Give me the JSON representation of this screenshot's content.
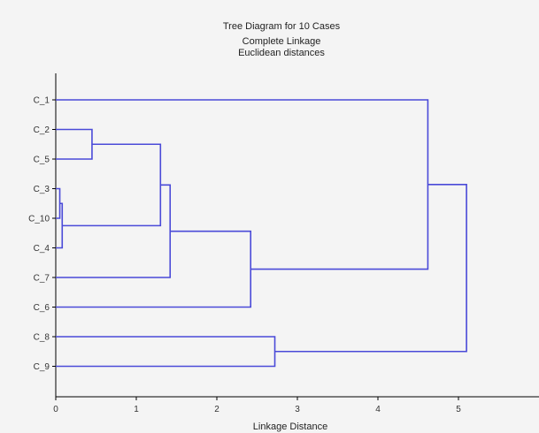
{
  "chart_data": {
    "type": "dendrogram",
    "title": "Tree Diagram for 10 Cases",
    "subtitle_lines": [
      "Complete Linkage",
      "Euclidean distances"
    ],
    "xlabel": "Linkage Distance",
    "xlim": [
      0,
      6
    ],
    "xticks": [
      0,
      1,
      2,
      3,
      4,
      5
    ],
    "leaves": [
      "C_1",
      "C_2",
      "C_5",
      "C_3",
      "C_10",
      "C_4",
      "C_7",
      "C_6",
      "C_8",
      "C_9"
    ],
    "merges": [
      {
        "left": "C_3",
        "right": "C_10",
        "height": 0.05
      },
      {
        "left": "C_3,C_10",
        "right": "C_4",
        "height": 0.08
      },
      {
        "left": "C_2",
        "right": "C_5",
        "height": 0.45
      },
      {
        "left": "C_2,C_5",
        "right": "C_3,C_10,C_4",
        "height": 1.3
      },
      {
        "left": "C_2,C_5,C_3,C_10,C_4",
        "right": "C_7",
        "height": 1.42
      },
      {
        "left": "C_2,C_5,C_3,C_10,C_4,C_7",
        "right": "C_6",
        "height": 2.42
      },
      {
        "left": "C_8",
        "right": "C_9",
        "height": 2.72
      },
      {
        "left": "C_1",
        "right": "C_2,C_5,C_3,C_10,C_4,C_7,C_6",
        "height": 4.62
      },
      {
        "left": "C_1,C_2,C_5,C_3,C_10,C_4,C_7,C_6",
        "right": "C_8,C_9",
        "height": 5.1
      }
    ],
    "line_color": "#4a4ad8",
    "grid": false
  }
}
